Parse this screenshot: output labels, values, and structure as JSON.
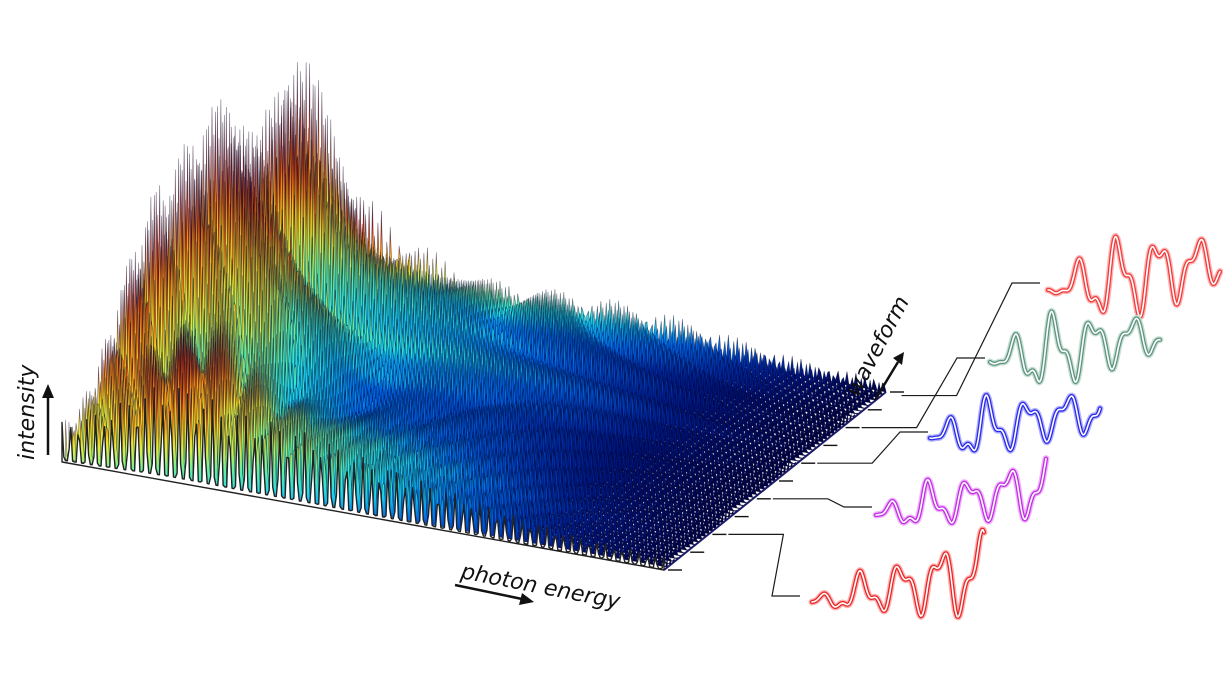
{
  "labels": {
    "intensity": "intensity",
    "photon_energy": "photon energy",
    "waveform": "waveform"
  },
  "colormap": [
    "#00003a",
    "#001a8c",
    "#0066e6",
    "#19d9f0",
    "#66f0a0",
    "#f2ee30",
    "#ff8a10",
    "#e0200a",
    "#7a0000"
  ],
  "waveforms": [
    {
      "color": "#f03c3c",
      "glow": "#ffb3b3"
    },
    {
      "color": "#5f9580",
      "glow": "#c4ded2"
    },
    {
      "color": "#2a2ae6",
      "glow": "#b0b0ff"
    },
    {
      "color": "#c030e0",
      "glow": "#f0b0ff"
    },
    {
      "color": "#e82828",
      "glow": "#ffb0b0"
    }
  ]
}
